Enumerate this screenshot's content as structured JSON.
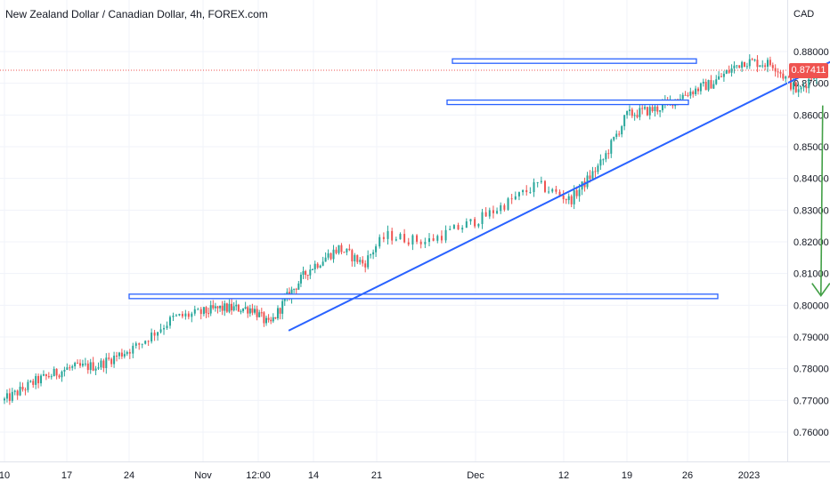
{
  "title": "New Zealand Dollar / Canadian Dollar, 4h, FOREX.com",
  "currency": "CAD",
  "current_price_label": "0.87411",
  "colors": {
    "up": "#26a69a",
    "down": "#ef5350",
    "trendline": "#2962ff",
    "zone_border": "#2962ff",
    "zone_fill": "#ffffff",
    "arrow": "#43a047",
    "grid": "#f0f3fa",
    "axis_text": "#131722",
    "current_price": "#ef5350"
  },
  "chart_data": {
    "type": "candlestick",
    "title": "New Zealand Dollar / Canadian Dollar, 4h, FOREX.com",
    "y_ticks": [
      "0.88000",
      "0.87000",
      "0.86000",
      "0.85000",
      "0.84000",
      "0.83000",
      "0.82000",
      "0.81000",
      "0.80000",
      "0.79000",
      "0.78000",
      "0.77000",
      "0.76000"
    ],
    "y_tick_values": [
      0.88,
      0.87,
      0.86,
      0.85,
      0.84,
      0.83,
      0.82,
      0.81,
      0.8,
      0.79,
      0.78,
      0.77,
      0.76
    ],
    "x_ticks": [
      "10",
      "17",
      "24",
      "Nov",
      "12:00",
      "14",
      "21",
      "Dec",
      "12",
      "19",
      "26",
      "2023"
    ],
    "ylim": [
      0.7515,
      0.8915
    ],
    "current_price": 0.87411,
    "series_waypoints": [
      {
        "x": 0.0,
        "price": 0.77
      },
      {
        "x": 0.5,
        "price": 0.776
      },
      {
        "x": 1.0,
        "price": 0.78
      },
      {
        "x": 1.5,
        "price": 0.781
      },
      {
        "x": 2.1,
        "price": 0.787
      },
      {
        "x": 2.6,
        "price": 0.796
      },
      {
        "x": 3.3,
        "price": 0.799
      },
      {
        "x": 3.9,
        "price": 0.799
      },
      {
        "x": 4.2,
        "price": 0.7935
      },
      {
        "x": 4.5,
        "price": 0.802
      },
      {
        "x": 4.9,
        "price": 0.811
      },
      {
        "x": 5.4,
        "price": 0.818
      },
      {
        "x": 5.8,
        "price": 0.813
      },
      {
        "x": 6.1,
        "price": 0.822
      },
      {
        "x": 6.5,
        "price": 0.82
      },
      {
        "x": 7.1,
        "price": 0.828
      },
      {
        "x": 7.7,
        "price": 0.838
      },
      {
        "x": 8.1,
        "price": 0.833
      },
      {
        "x": 8.6,
        "price": 0.845
      },
      {
        "x": 9.0,
        "price": 0.86
      },
      {
        "x": 9.5,
        "price": 0.862
      },
      {
        "x": 10.0,
        "price": 0.867
      },
      {
        "x": 10.4,
        "price": 0.87
      },
      {
        "x": 10.9,
        "price": 0.877
      },
      {
        "x": 11.4,
        "price": 0.876
      },
      {
        "x": 11.8,
        "price": 0.867
      },
      {
        "x": 12.1,
        "price": 0.8741
      }
    ],
    "annotations": {
      "resistance_zone_top": 0.877,
      "support_zone_neckline": 0.864,
      "target_zone": 0.8028,
      "trendline": {
        "from": {
          "x": 4.55,
          "price": 0.792
        },
        "to": {
          "x": 12.35,
          "price": 0.877
        }
      },
      "arrow": {
        "from": {
          "x": 12.2,
          "price": 0.863
        },
        "to": {
          "x": 12.2,
          "price": 0.803
        }
      }
    }
  }
}
